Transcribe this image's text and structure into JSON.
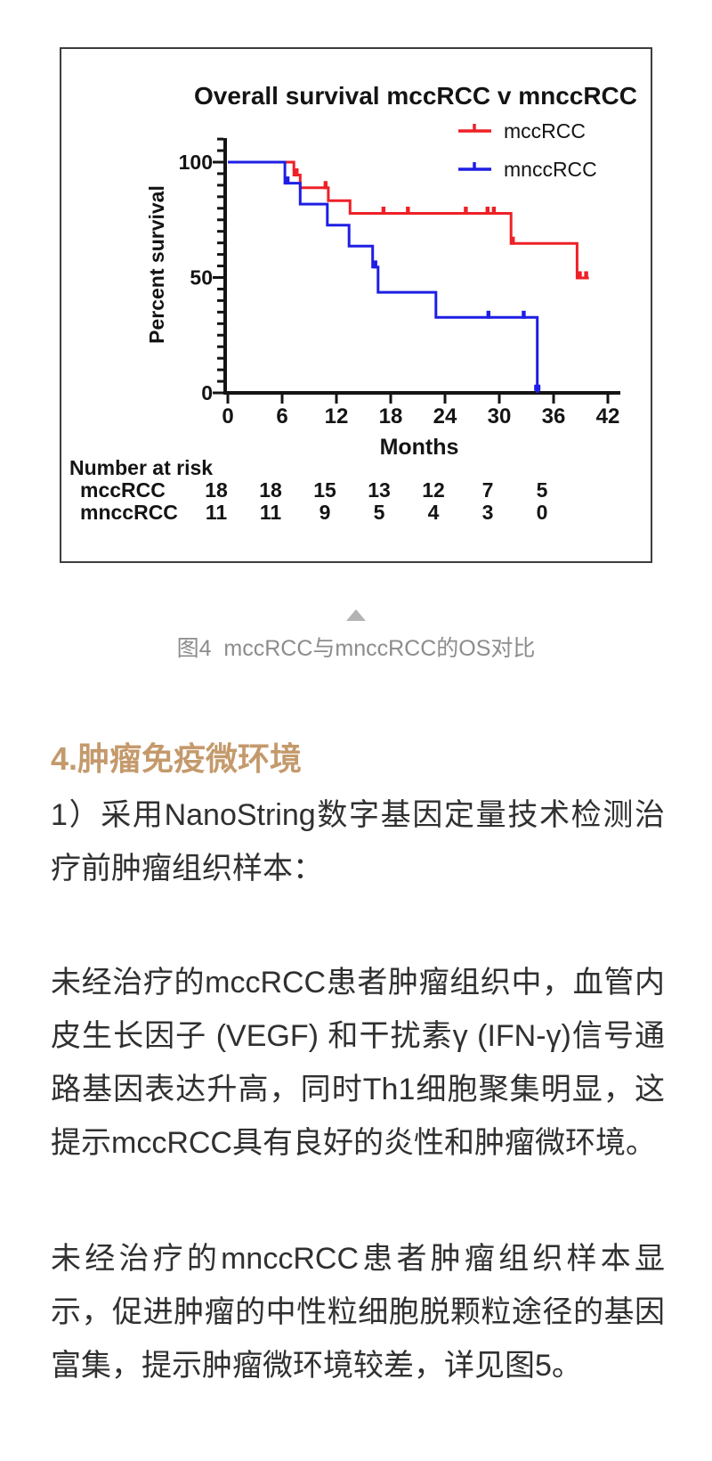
{
  "chart_data": {
    "type": "line",
    "subtype": "kaplan-meier-step",
    "title": "Overall survival mccRCC v mnccRCC",
    "xlabel": "Months",
    "ylabel": "Percent survival",
    "xlim": [
      0,
      42
    ],
    "ylim": [
      0,
      100
    ],
    "xticks": [
      0,
      6,
      12,
      18,
      24,
      30,
      36,
      42
    ],
    "yticks": [
      100,
      50,
      0
    ],
    "grid": false,
    "legend_position": "top-right",
    "series": [
      {
        "name": "mccRCC",
        "color": "#ee2127",
        "points": [
          [
            0,
            100
          ],
          [
            7.3,
            100
          ],
          [
            7.3,
            94.4
          ],
          [
            8.0,
            94.4
          ],
          [
            8.0,
            88.9
          ],
          [
            11.1,
            88.9
          ],
          [
            11.1,
            83.3
          ],
          [
            13.5,
            83.3
          ],
          [
            13.5,
            77.8
          ],
          [
            31.3,
            77.8
          ],
          [
            31.3,
            64.8
          ],
          [
            38.6,
            64.8
          ],
          [
            38.6,
            49.8
          ],
          [
            39.9,
            49.8
          ]
        ],
        "censors": [
          [
            7.6,
            94.4
          ],
          [
            10.8,
            88.9
          ],
          [
            17.2,
            77.8
          ],
          [
            19.9,
            77.8
          ],
          [
            26.3,
            77.8
          ],
          [
            28.7,
            77.8
          ],
          [
            29.4,
            77.8
          ],
          [
            31.5,
            64.8
          ],
          [
            38.9,
            49.8
          ],
          [
            39.6,
            49.8
          ]
        ]
      },
      {
        "name": "mnccRCC",
        "color": "#1e1ee4",
        "points": [
          [
            0,
            100
          ],
          [
            6.3,
            100
          ],
          [
            6.3,
            90.9
          ],
          [
            8.0,
            90.9
          ],
          [
            8.0,
            81.8
          ],
          [
            11.0,
            81.8
          ],
          [
            11.0,
            72.7
          ],
          [
            13.4,
            72.7
          ],
          [
            13.4,
            63.6
          ],
          [
            16.0,
            63.6
          ],
          [
            16.0,
            54.5
          ],
          [
            16.6,
            54.5
          ],
          [
            16.6,
            43.6
          ],
          [
            23.0,
            43.6
          ],
          [
            23.0,
            32.7
          ],
          [
            34.2,
            32.7
          ],
          [
            34.2,
            0
          ]
        ],
        "censors": [
          [
            6.6,
            90.9
          ],
          [
            16.3,
            54.5
          ],
          [
            28.8,
            32.7
          ],
          [
            32.7,
            32.7
          ]
        ],
        "end_marker": [
          34.2,
          2.2
        ]
      }
    ],
    "number_at_risk": {
      "label": "Number at risk",
      "times": [
        0,
        6,
        12,
        18,
        24,
        30,
        36
      ],
      "rows": [
        {
          "name": "mccRCC",
          "values": [
            18,
            18,
            15,
            13,
            12,
            7,
            5
          ]
        },
        {
          "name": "mnccRCC",
          "values": [
            11,
            11,
            9,
            5,
            4,
            3,
            0
          ]
        }
      ]
    },
    "axis_color": "#141414"
  },
  "caption": {
    "marker_icon": "collapse-triangle",
    "marker_color": "#b3b3b3",
    "text": "图4  mccRCC与mnccRCC的OS对比",
    "text_color": "#8c8c8c"
  },
  "section": {
    "heading": "4.肿瘤免疫微环境",
    "heading_color": "#c49a6c",
    "paragraphs": [
      {
        "lines": [
          "1）采用NanoString数字基因定量技术检测治",
          "疗前肿瘤组织样本："
        ]
      },
      {
        "lines": [
          "未经治疗的mccRCC患者肿瘤组织中，血管内",
          "皮生长因子 (VEGF) 和干扰素γ (IFN-γ)信号通",
          "路基因表达升高，同时Th1细胞聚集明显，这",
          "提示mccRCC具有良好的炎性和肿瘤微环境。"
        ]
      },
      {
        "lines": [
          "未经治疗的mnccRCC患者肿瘤组织样本显",
          "示，促进肿瘤的中性粒细胞脱颗粒途径的基因",
          "富集，提示肿瘤微环境较差，详见图5。"
        ]
      }
    ]
  }
}
